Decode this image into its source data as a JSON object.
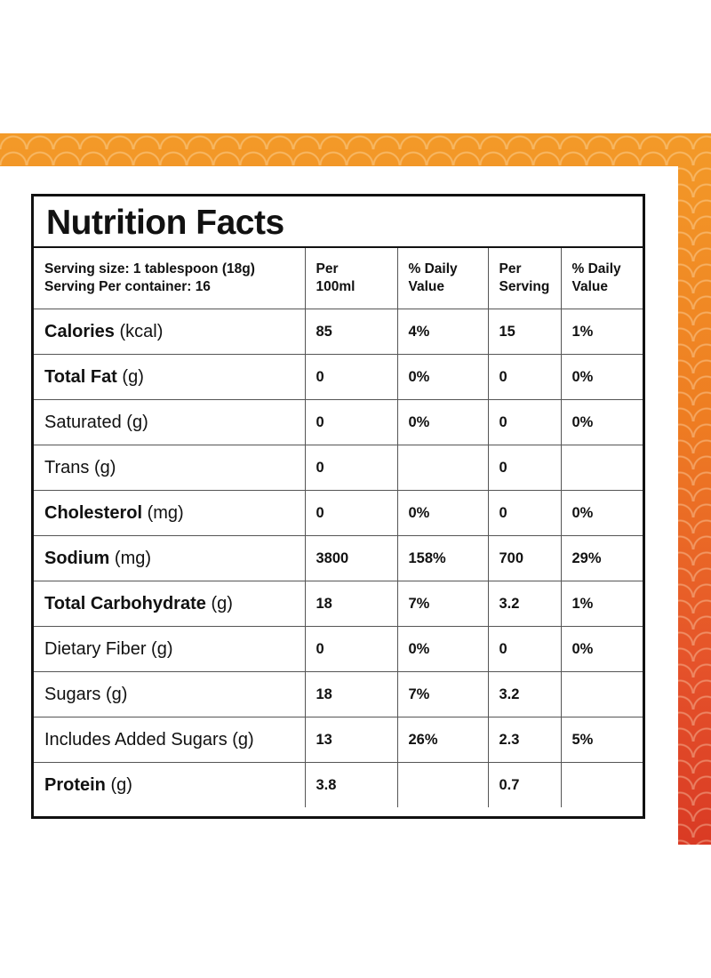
{
  "title": "Nutrition Facts",
  "header": {
    "serving_size": "Serving size: 1 tablespoon (18g)",
    "servings_per_container": "Serving Per container: 16",
    "col_per100_line1": "Per",
    "col_per100_line2": "100ml",
    "col_dv1_line1": "% Daily",
    "col_dv1_line2": "Value",
    "col_serv_line1": "Per",
    "col_serv_line2": "Serving",
    "col_dv2_line1": "% Daily",
    "col_dv2_line2": "Value"
  },
  "rows": [
    {
      "name": "Calories",
      "unit": "(kcal)",
      "bold": true,
      "per100": "85",
      "dv100": "4%",
      "perServing": "15",
      "dvServing": "1%"
    },
    {
      "name": "Total Fat",
      "unit": "(g)",
      "bold": true,
      "per100": "0",
      "dv100": "0%",
      "perServing": "0",
      "dvServing": "0%"
    },
    {
      "name": "Saturated",
      "unit": "(g)",
      "bold": false,
      "per100": "0",
      "dv100": "0%",
      "perServing": "0",
      "dvServing": "0%"
    },
    {
      "name": "Trans",
      "unit": "(g)",
      "bold": false,
      "per100": "0",
      "dv100": "",
      "perServing": "0",
      "dvServing": ""
    },
    {
      "name": "Cholesterol",
      "unit": "(mg)",
      "bold": true,
      "per100": "0",
      "dv100": "0%",
      "perServing": "0",
      "dvServing": "0%"
    },
    {
      "name": "Sodium",
      "unit": "(mg)",
      "bold": true,
      "per100": "3800",
      "dv100": "158%",
      "perServing": "700",
      "dvServing": "29%"
    },
    {
      "name": "Total Carbohydrate",
      "unit": "(g)",
      "bold": true,
      "per100": "18",
      "dv100": "7%",
      "perServing": "3.2",
      "dvServing": "1%"
    },
    {
      "name": "Dietary Fiber",
      "unit": "(g)",
      "bold": false,
      "per100": "0",
      "dv100": "0%",
      "perServing": "0",
      "dvServing": "0%"
    },
    {
      "name": "Sugars",
      "unit": "(g)",
      "bold": false,
      "per100": "18",
      "dv100": "7%",
      "perServing": "3.2",
      "dvServing": ""
    },
    {
      "name": "Includes Added Sugars",
      "unit": "(g)",
      "bold": false,
      "per100": "13",
      "dv100": "26%",
      "perServing": "2.3",
      "dvServing": "5%"
    },
    {
      "name": "Protein",
      "unit": "(g)",
      "bold": true,
      "per100": "3.8",
      "dv100": "",
      "perServing": "0.7",
      "dvServing": ""
    }
  ],
  "colors": {
    "band_top": "#f39a28",
    "band_bottom": "#d93a24",
    "border": "#111111"
  }
}
